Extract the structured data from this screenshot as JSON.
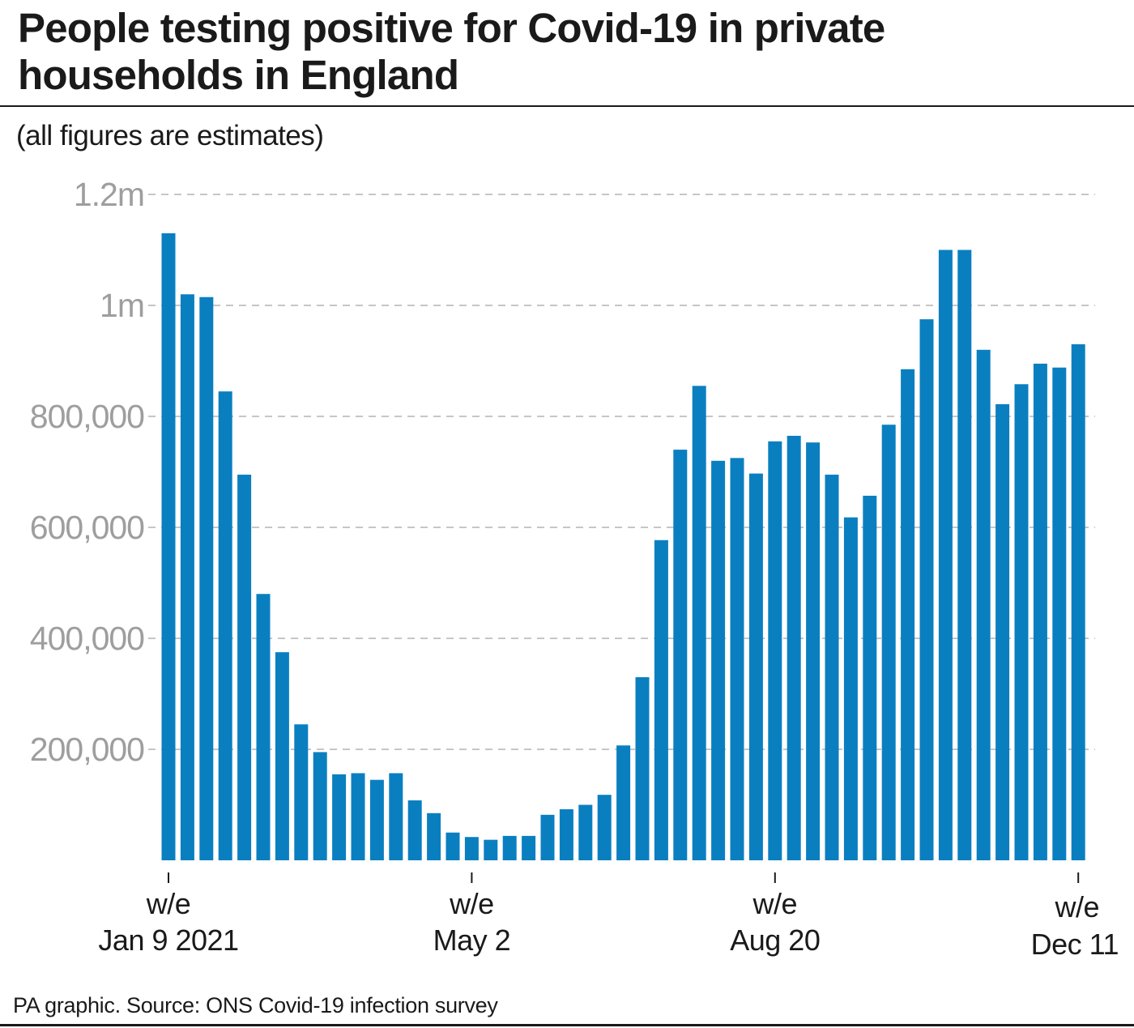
{
  "header": {
    "title": "People testing positive for Covid-19 in private households in England",
    "subtitle": "(all figures are estimates)"
  },
  "footer": {
    "source": "PA graphic. Source: ONS Covid-19 infection survey"
  },
  "colors": {
    "bar": "#0a7fc0",
    "gridline": "#b3b3b3",
    "tick_label": "#9e9e9e",
    "text": "#1a1a1a"
  },
  "chart_data": {
    "type": "bar",
    "title": "People testing positive for Covid-19 in private households in England",
    "subtitle": "(all figures are estimates)",
    "ylim": [
      0,
      1200000
    ],
    "grid": true,
    "y_ticks": [
      {
        "value": 200000,
        "label": "200,000"
      },
      {
        "value": 400000,
        "label": "400,000"
      },
      {
        "value": 600000,
        "label": "600,000"
      },
      {
        "value": 800000,
        "label": "800,000"
      },
      {
        "value": 1000000,
        "label": "1m"
      },
      {
        "value": 1200000,
        "label": "1.2m"
      }
    ],
    "x_ticks": [
      {
        "index": 0,
        "line1": "w/e",
        "line2": "Jan 9 2021"
      },
      {
        "index": 16,
        "line1": "w/e",
        "line2": "May 2"
      },
      {
        "index": 32,
        "line1": "w/e",
        "line2": "Aug 20"
      },
      {
        "index": 48,
        "line1": "w/e",
        "line2": "Dec 11"
      }
    ],
    "values": [
      1130000,
      1020000,
      1015000,
      845000,
      695000,
      480000,
      375000,
      245000,
      195000,
      155000,
      157000,
      145000,
      157000,
      108000,
      85000,
      50000,
      42000,
      37000,
      44000,
      44000,
      82000,
      92000,
      100000,
      118000,
      207000,
      330000,
      577000,
      740000,
      855000,
      720000,
      725000,
      697000,
      755000,
      765000,
      753000,
      695000,
      618000,
      657000,
      785000,
      885000,
      975000,
      1100000,
      1100000,
      920000,
      822000,
      858000,
      895000,
      888000,
      930000
    ]
  }
}
